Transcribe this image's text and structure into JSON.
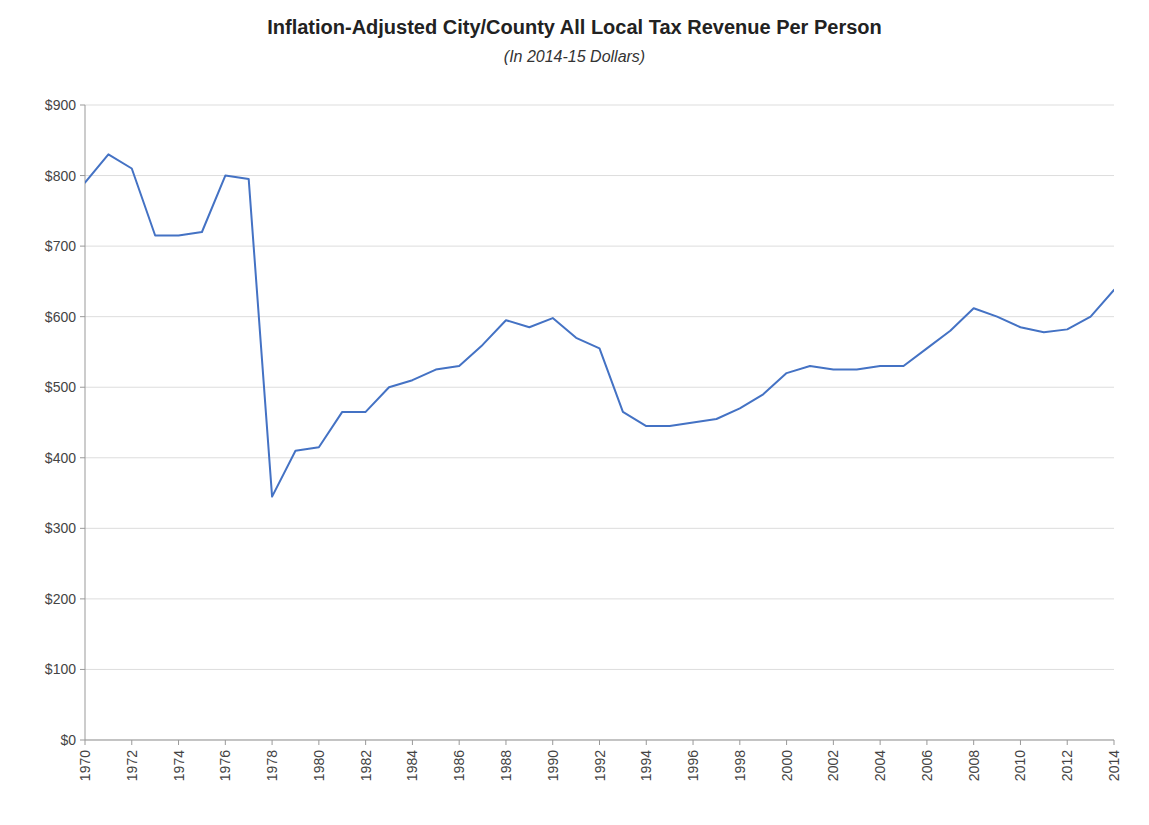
{
  "chart_data": {
    "type": "line",
    "title": "Inflation-Adjusted City/County All Local Tax Revenue Per Person",
    "subtitle": "(In 2014-15 Dollars)",
    "color": "#4472C4",
    "grid": true,
    "xlim": [
      1970,
      2014
    ],
    "xticks": [
      1970,
      1972,
      1974,
      1976,
      1978,
      1980,
      1982,
      1984,
      1986,
      1988,
      1990,
      1992,
      1994,
      1996,
      1998,
      2000,
      2002,
      2004,
      2006,
      2008,
      2010,
      2012,
      2014
    ],
    "ylim": [
      0,
      900
    ],
    "yticks": [
      {
        "value": 0,
        "label": "$0"
      },
      {
        "value": 100,
        "label": "$100"
      },
      {
        "value": 200,
        "label": "$200"
      },
      {
        "value": 300,
        "label": "$300"
      },
      {
        "value": 400,
        "label": "$400"
      },
      {
        "value": 500,
        "label": "$500"
      },
      {
        "value": 600,
        "label": "$600"
      },
      {
        "value": 700,
        "label": "$700"
      },
      {
        "value": 800,
        "label": "$800"
      },
      {
        "value": 900,
        "label": "$900"
      }
    ],
    "x": [
      1970,
      1971,
      1972,
      1973,
      1974,
      1975,
      1976,
      1977,
      1978,
      1979,
      1980,
      1981,
      1982,
      1983,
      1984,
      1985,
      1986,
      1987,
      1988,
      1989,
      1990,
      1991,
      1992,
      1993,
      1994,
      1995,
      1996,
      1997,
      1998,
      1999,
      2000,
      2001,
      2002,
      2003,
      2004,
      2005,
      2006,
      2007,
      2008,
      2009,
      2010,
      2011,
      2012,
      2013,
      2014
    ],
    "values": [
      790,
      830,
      810,
      715,
      715,
      720,
      800,
      795,
      345,
      410,
      415,
      465,
      465,
      500,
      510,
      525,
      530,
      560,
      595,
      585,
      598,
      570,
      555,
      465,
      445,
      445,
      450,
      455,
      470,
      490,
      520,
      530,
      525,
      525,
      530,
      530,
      555,
      580,
      612,
      600,
      585,
      578,
      582,
      600,
      638
    ]
  }
}
